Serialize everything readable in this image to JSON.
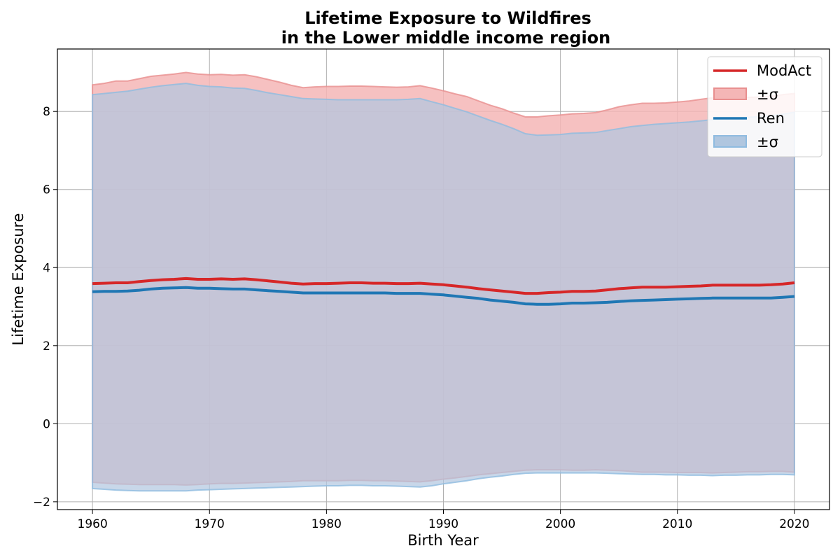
{
  "chart_data": {
    "type": "area",
    "title": "Lifetime Exposure to Wildfires\nin the Lower middle income region",
    "xlabel": "Birth Year",
    "ylabel": "Lifetime Exposure",
    "xlim": [
      1957,
      2023
    ],
    "ylim": [
      -2.2,
      9.6
    ],
    "xticks": [
      1960,
      1970,
      1980,
      1990,
      2000,
      2010,
      2020
    ],
    "yticks": [
      -2,
      0,
      2,
      4,
      6,
      8
    ],
    "grid": true,
    "legend_position": "top-right",
    "x": [
      1960,
      1961,
      1962,
      1963,
      1964,
      1965,
      1966,
      1967,
      1968,
      1969,
      1970,
      1971,
      1972,
      1973,
      1974,
      1975,
      1976,
      1977,
      1978,
      1979,
      1980,
      1981,
      1982,
      1983,
      1984,
      1985,
      1986,
      1987,
      1988,
      1989,
      1990,
      1991,
      1992,
      1993,
      1994,
      1995,
      1996,
      1997,
      1998,
      1999,
      2000,
      2001,
      2002,
      2003,
      2004,
      2005,
      2006,
      2007,
      2008,
      2009,
      2010,
      2011,
      2012,
      2013,
      2014,
      2015,
      2016,
      2017,
      2018,
      2019,
      2020
    ],
    "series": [
      {
        "name": "ModAct",
        "band_label": "±σ",
        "color": "#d62728",
        "band_color": "#f4b6b6",
        "band_edge": "#e88f8f",
        "mean": [
          3.59,
          3.6,
          3.61,
          3.61,
          3.64,
          3.67,
          3.69,
          3.7,
          3.72,
          3.7,
          3.7,
          3.71,
          3.7,
          3.71,
          3.69,
          3.66,
          3.63,
          3.6,
          3.58,
          3.59,
          3.59,
          3.6,
          3.61,
          3.61,
          3.6,
          3.6,
          3.59,
          3.59,
          3.6,
          3.58,
          3.56,
          3.53,
          3.5,
          3.46,
          3.43,
          3.4,
          3.37,
          3.34,
          3.34,
          3.36,
          3.37,
          3.39,
          3.39,
          3.4,
          3.43,
          3.46,
          3.48,
          3.5,
          3.5,
          3.5,
          3.51,
          3.52,
          3.53,
          3.55,
          3.55,
          3.55,
          3.55,
          3.55,
          3.56,
          3.58,
          3.61
        ],
        "upper": [
          8.68,
          8.72,
          8.78,
          8.78,
          8.84,
          8.9,
          8.93,
          8.96,
          9.0,
          8.96,
          8.94,
          8.95,
          8.93,
          8.94,
          8.89,
          8.82,
          8.75,
          8.67,
          8.61,
          8.63,
          8.64,
          8.64,
          8.65,
          8.65,
          8.64,
          8.63,
          8.62,
          8.63,
          8.66,
          8.6,
          8.53,
          8.45,
          8.38,
          8.27,
          8.16,
          8.07,
          7.96,
          7.86,
          7.86,
          7.89,
          7.91,
          7.94,
          7.95,
          7.97,
          8.04,
          8.12,
          8.17,
          8.21,
          8.21,
          8.22,
          8.24,
          8.27,
          8.31,
          8.35,
          8.36,
          8.36,
          8.36,
          8.37,
          8.39,
          8.43,
          8.46
        ],
        "lower": [
          -1.5,
          -1.52,
          -1.54,
          -1.55,
          -1.56,
          -1.56,
          -1.56,
          -1.56,
          -1.57,
          -1.56,
          -1.54,
          -1.53,
          -1.53,
          -1.52,
          -1.51,
          -1.5,
          -1.49,
          -1.48,
          -1.46,
          -1.46,
          -1.46,
          -1.46,
          -1.45,
          -1.45,
          -1.46,
          -1.46,
          -1.47,
          -1.48,
          -1.49,
          -1.46,
          -1.42,
          -1.39,
          -1.35,
          -1.31,
          -1.28,
          -1.25,
          -1.22,
          -1.19,
          -1.18,
          -1.18,
          -1.18,
          -1.19,
          -1.19,
          -1.18,
          -1.19,
          -1.2,
          -1.22,
          -1.24,
          -1.24,
          -1.24,
          -1.25,
          -1.25,
          -1.25,
          -1.26,
          -1.25,
          -1.24,
          -1.23,
          -1.23,
          -1.22,
          -1.22,
          -1.24
        ]
      },
      {
        "name": "Ren",
        "band_label": "±σ",
        "color": "#1f77b4",
        "band_color": "#b0c6df",
        "band_edge": "#8fbbe0",
        "mean": [
          3.38,
          3.39,
          3.39,
          3.4,
          3.42,
          3.45,
          3.47,
          3.48,
          3.49,
          3.47,
          3.47,
          3.46,
          3.45,
          3.45,
          3.43,
          3.41,
          3.39,
          3.37,
          3.35,
          3.35,
          3.35,
          3.35,
          3.35,
          3.35,
          3.35,
          3.35,
          3.34,
          3.34,
          3.34,
          3.32,
          3.3,
          3.27,
          3.24,
          3.21,
          3.17,
          3.14,
          3.11,
          3.07,
          3.06,
          3.06,
          3.07,
          3.09,
          3.09,
          3.1,
          3.11,
          3.13,
          3.15,
          3.16,
          3.17,
          3.18,
          3.19,
          3.2,
          3.21,
          3.22,
          3.22,
          3.22,
          3.22,
          3.22,
          3.22,
          3.24,
          3.26
        ],
        "upper": [
          8.43,
          8.46,
          8.49,
          8.52,
          8.57,
          8.62,
          8.66,
          8.69,
          8.72,
          8.67,
          8.64,
          8.63,
          8.6,
          8.59,
          8.54,
          8.48,
          8.43,
          8.38,
          8.33,
          8.32,
          8.31,
          8.3,
          8.3,
          8.3,
          8.3,
          8.3,
          8.3,
          8.31,
          8.33,
          8.25,
          8.17,
          8.08,
          7.99,
          7.88,
          7.77,
          7.67,
          7.56,
          7.43,
          7.39,
          7.4,
          7.41,
          7.44,
          7.45,
          7.46,
          7.51,
          7.56,
          7.61,
          7.64,
          7.67,
          7.69,
          7.71,
          7.73,
          7.76,
          7.79,
          7.81,
          7.83,
          7.85,
          7.87,
          7.89,
          7.93,
          7.98
        ],
        "lower": [
          -1.66,
          -1.68,
          -1.7,
          -1.71,
          -1.72,
          -1.72,
          -1.72,
          -1.72,
          -1.72,
          -1.7,
          -1.69,
          -1.68,
          -1.67,
          -1.66,
          -1.65,
          -1.64,
          -1.63,
          -1.62,
          -1.61,
          -1.6,
          -1.59,
          -1.59,
          -1.58,
          -1.58,
          -1.59,
          -1.59,
          -1.6,
          -1.61,
          -1.62,
          -1.59,
          -1.54,
          -1.5,
          -1.46,
          -1.41,
          -1.37,
          -1.34,
          -1.3,
          -1.27,
          -1.26,
          -1.26,
          -1.26,
          -1.26,
          -1.26,
          -1.26,
          -1.27,
          -1.28,
          -1.29,
          -1.3,
          -1.3,
          -1.31,
          -1.31,
          -1.32,
          -1.32,
          -1.33,
          -1.32,
          -1.32,
          -1.31,
          -1.31,
          -1.3,
          -1.3,
          -1.31
        ]
      }
    ]
  }
}
